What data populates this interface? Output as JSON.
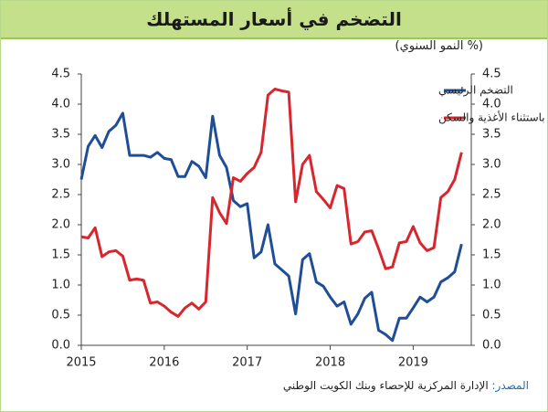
{
  "chart_data": {
    "type": "line",
    "title": "التضخم في أسعار المستهلك",
    "subtitle": "(% النمو السنوي)",
    "source_label": "المصدر:",
    "source": "الإدارة المركزية للإحصاء وبنك الكويت الوطني",
    "x": [
      2015,
      2015.083,
      2015.167,
      2015.25,
      2015.333,
      2015.417,
      2015.5,
      2015.583,
      2015.667,
      2015.75,
      2015.833,
      2015.917,
      2016,
      2016.083,
      2016.167,
      2016.25,
      2016.333,
      2016.417,
      2016.5,
      2016.583,
      2016.667,
      2016.75,
      2016.833,
      2016.917,
      2017,
      2017.083,
      2017.167,
      2017.25,
      2017.333,
      2017.417,
      2017.5,
      2017.583,
      2017.667,
      2017.75,
      2017.833,
      2017.917,
      2018,
      2018.083,
      2018.167,
      2018.25,
      2018.333,
      2018.417,
      2018.5,
      2018.583,
      2018.667,
      2018.75,
      2018.833,
      2018.917,
      2019,
      2019.083,
      2019.167,
      2019.25,
      2019.333,
      2019.417,
      2019.5,
      2019.583
    ],
    "series": [
      {
        "name": "التضخم الرئيسي",
        "color": "#1f4e96",
        "values": [
          2.75,
          3.3,
          3.48,
          3.28,
          3.55,
          3.65,
          3.85,
          3.15,
          3.15,
          3.15,
          3.12,
          3.2,
          3.1,
          3.08,
          2.8,
          2.8,
          3.05,
          2.97,
          2.78,
          3.8,
          3.15,
          2.95,
          2.4,
          2.3,
          2.35,
          1.45,
          1.55,
          2.0,
          1.35,
          1.25,
          1.15,
          0.52,
          1.42,
          1.52,
          1.05,
          0.98,
          0.8,
          0.65,
          0.72,
          0.35,
          0.52,
          0.78,
          0.88,
          0.25,
          0.18,
          0.08,
          0.45,
          0.45,
          0.62,
          0.8,
          0.72,
          0.8,
          1.05,
          1.12,
          1.22,
          1.68
        ]
      },
      {
        "name": "باستثناء الأغذية والسكن",
        "color": "#d7262e",
        "values": [
          1.8,
          1.78,
          1.95,
          1.47,
          1.55,
          1.57,
          1.48,
          1.08,
          1.1,
          1.08,
          0.7,
          0.72,
          0.65,
          0.55,
          0.48,
          0.62,
          0.7,
          0.6,
          0.72,
          2.45,
          2.2,
          2.02,
          2.78,
          2.72,
          2.85,
          2.95,
          3.2,
          4.15,
          4.25,
          4.22,
          4.2,
          2.38,
          3.0,
          3.15,
          2.55,
          2.42,
          2.28,
          2.65,
          2.6,
          1.68,
          1.72,
          1.88,
          1.9,
          1.6,
          1.27,
          1.3,
          1.7,
          1.72,
          1.97,
          1.7,
          1.57,
          1.62,
          2.45,
          2.55,
          2.75,
          3.2
        ]
      }
    ],
    "xlim": [
      2015,
      2019.7
    ],
    "xticks": [
      2015,
      2016,
      2017,
      2018,
      2019
    ],
    "ylim": [
      0,
      4.5
    ],
    "yticks": [
      {
        "value": 0,
        "label": "0.0"
      },
      0.5,
      {
        "value": 1,
        "label": "1.0"
      },
      1.5,
      {
        "value": 2,
        "label": "2.0"
      },
      2.5,
      {
        "value": 3,
        "label": "3.0"
      },
      3.5,
      {
        "value": 4,
        "label": "4.0"
      },
      4.5
    ],
    "y2lim": [
      0,
      4.5
    ],
    "y2ticks": [
      {
        "value": 0,
        "label": "0.0"
      },
      0.5,
      {
        "value": 1,
        "label": "1.0"
      },
      1.5,
      {
        "value": 2,
        "label": "2.0"
      },
      2.5,
      {
        "value": 3,
        "label": "3.0"
      },
      3.5,
      {
        "value": 4,
        "label": "4.0"
      },
      4.5
    ],
    "legend": "top-right"
  }
}
